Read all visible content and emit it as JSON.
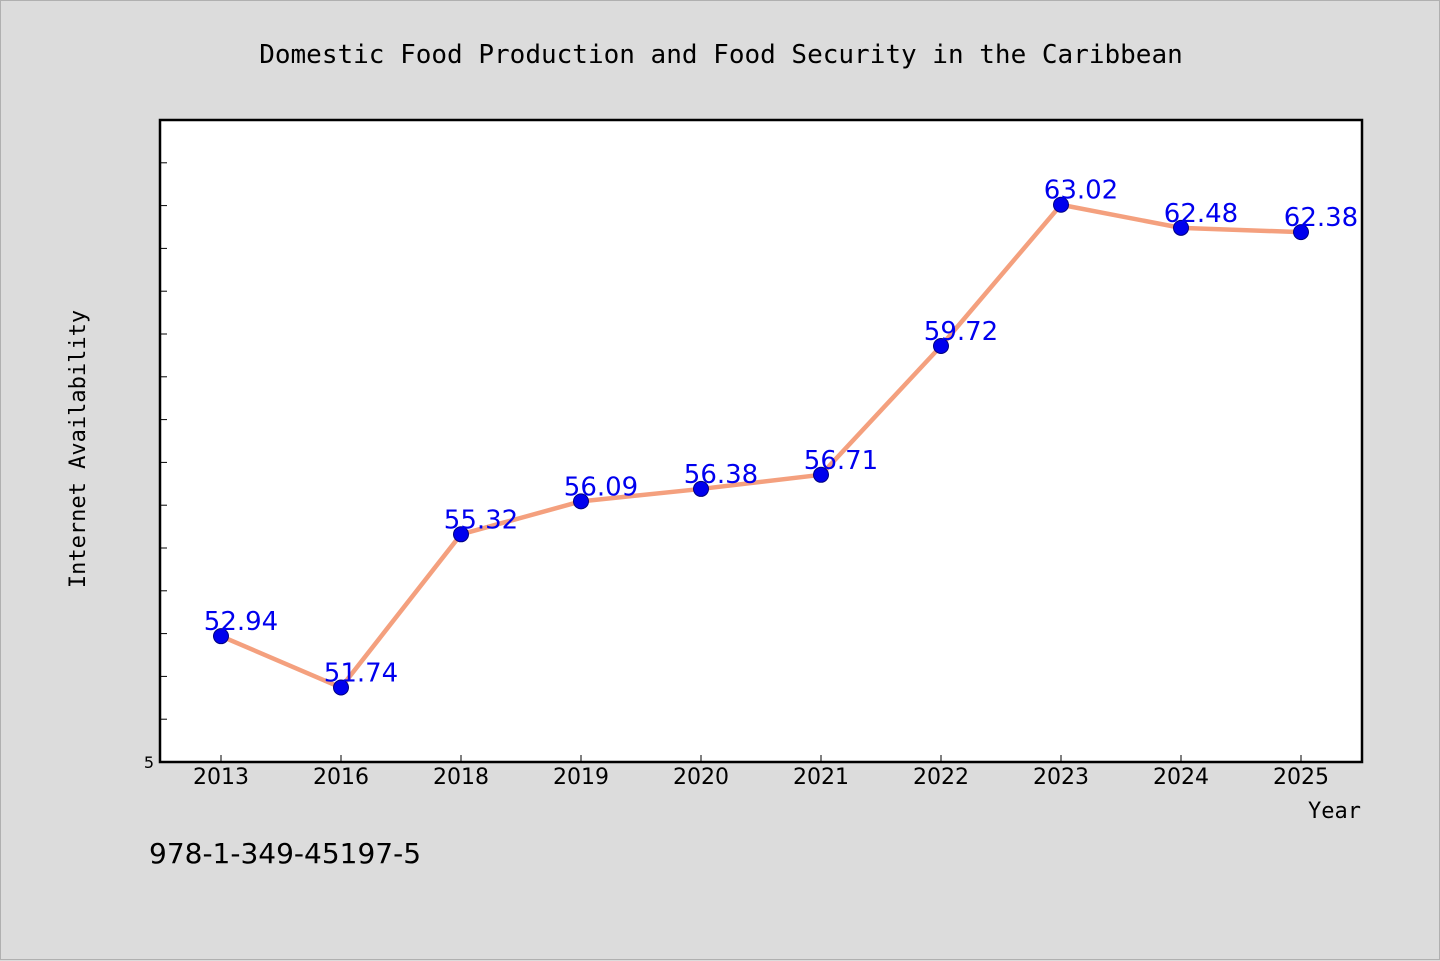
{
  "chart_data": {
    "type": "line",
    "title": "Domestic Food Production and Food Security in the Caribbean",
    "xlabel": "Year",
    "ylabel": "Internet Availability",
    "categories": [
      "2013",
      "2016",
      "2018",
      "2019",
      "2020",
      "2021",
      "2022",
      "2023",
      "2024",
      "2025"
    ],
    "series": [
      {
        "values": [
          52.94,
          51.74,
          55.32,
          56.09,
          56.38,
          56.71,
          59.72,
          63.02,
          62.48,
          62.38
        ],
        "labels": [
          "52.94",
          "51.74",
          "55.32",
          "56.09",
          "56.38",
          "56.71",
          "59.72",
          "63.02",
          "62.48",
          "62.38"
        ]
      }
    ],
    "ylim": [
      50,
      65
    ],
    "y_tick_labels_shown": [
      "5"
    ],
    "grid": false,
    "colors": {
      "line": "#f4a07e",
      "marker": "#0000ee",
      "label": "#0000ee"
    }
  },
  "footer": {
    "isbn": "978-1-349-45197-5"
  }
}
